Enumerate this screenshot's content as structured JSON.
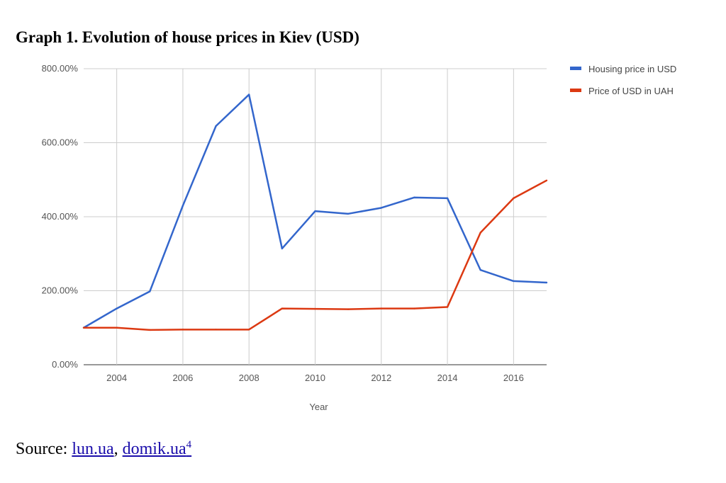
{
  "title": "Graph 1. Evolution of house prices in Kiev (USD)",
  "source": {
    "prefix": "Source: ",
    "links": [
      "lun.ua",
      "domik.ua"
    ],
    "separator": ", ",
    "footnote": "4"
  },
  "chart_data": {
    "type": "line",
    "xlabel": "Year",
    "ylabel": "",
    "x": [
      2003,
      2004,
      2005,
      2006,
      2007,
      2008,
      2009,
      2010,
      2011,
      2012,
      2013,
      2014,
      2015,
      2016,
      2017
    ],
    "xlim": [
      2003,
      2017
    ],
    "ylim": [
      0,
      800
    ],
    "x_ticks": [
      "2004",
      "2006",
      "2008",
      "2010",
      "2012",
      "2014",
      "2016"
    ],
    "y_ticks": [
      "0.00%",
      "200.00%",
      "400.00%",
      "600.00%",
      "800.00%"
    ],
    "grid": true,
    "legend_position": "right",
    "series": [
      {
        "name": "Housing price in USD",
        "color": "#3366cc",
        "values": [
          100,
          152,
          198,
          430,
          645,
          730,
          314,
          415,
          408,
          424,
          452,
          450,
          256,
          226,
          222
        ]
      },
      {
        "name": "Price of USD in UAH",
        "color": "#dc3912",
        "values": [
          100,
          100,
          94,
          95,
          95,
          95,
          152,
          151,
          150,
          152,
          152,
          156,
          357,
          450,
          498
        ]
      }
    ]
  }
}
